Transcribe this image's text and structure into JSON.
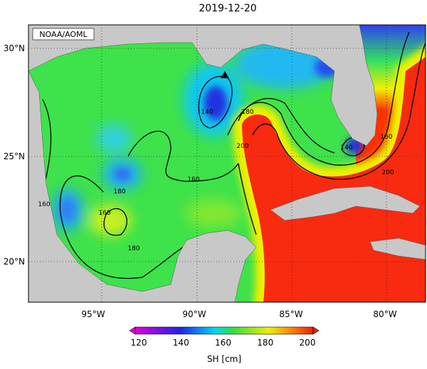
{
  "title": "2019-12-20",
  "credit": "NOAA/AOML",
  "lat_labels": [
    "30°N",
    "25°N",
    "20°N"
  ],
  "lon_labels": [
    "95°W",
    "90°W",
    "85°W",
    "80°W"
  ],
  "contour_labels": [
    "140",
    "160",
    "180",
    "160",
    "180",
    "200",
    "140",
    "180",
    "200",
    "160",
    "160"
  ],
  "colorbar": {
    "ticks": [
      "120",
      "140",
      "160",
      "180",
      "200"
    ],
    "label": "SH [cm]"
  }
}
